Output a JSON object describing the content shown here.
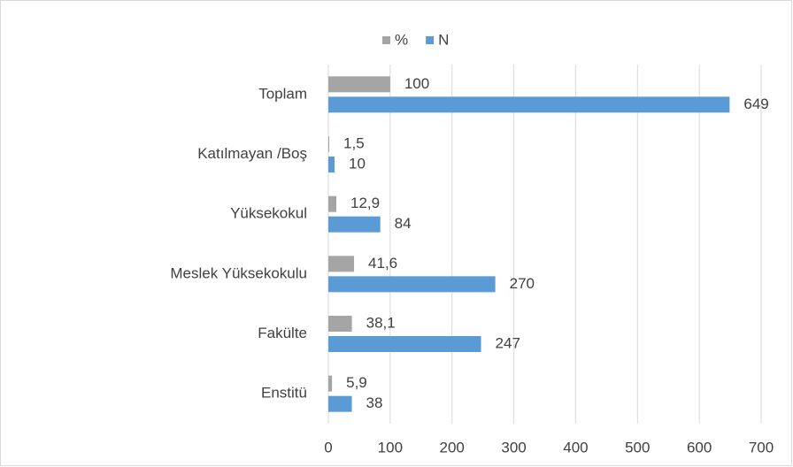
{
  "chart_data": {
    "type": "hbar",
    "categories": [
      "Toplam",
      "Katılmayan /Boş",
      "Yüksekokul",
      "Meslek Yüksekokulu",
      "Fakülte",
      "Enstitü"
    ],
    "series": [
      {
        "name": "%",
        "color": "#a5a5a5",
        "values": [
          100,
          1.5,
          12.9,
          41.6,
          38.1,
          5.9
        ],
        "value_labels": [
          "100",
          "1,5",
          "12,9",
          "41,6",
          "38,1",
          "5,9"
        ]
      },
      {
        "name": "N",
        "color": "#5b9bd5",
        "values": [
          649,
          10,
          84,
          270,
          247,
          38
        ]
      }
    ],
    "xlim": [
      0,
      700
    ],
    "xticks": [
      0,
      100,
      200,
      300,
      400,
      500,
      600,
      700
    ],
    "grid": true,
    "legend": "top"
  }
}
